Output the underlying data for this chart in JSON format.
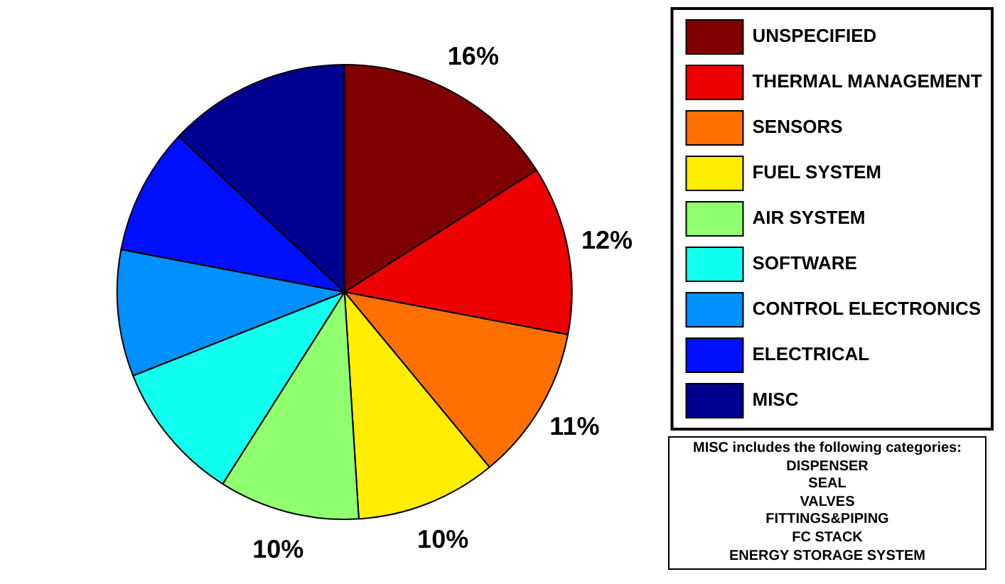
{
  "chart_data": {
    "type": "pie",
    "categories": [
      "UNSPECIFIED",
      "THERMAL MANAGEMENT",
      "SENSORS",
      "FUEL SYSTEM",
      "AIR SYSTEM",
      "SOFTWARE",
      "CONTROL ELECTRONICS",
      "ELECTRICAL",
      "MISC"
    ],
    "values": [
      16,
      12,
      11,
      10,
      10,
      10,
      9,
      9,
      13
    ],
    "colors": [
      "#800000",
      "#ee0000",
      "#ff7000",
      "#ffee00",
      "#90ff70",
      "#10ffee",
      "#0090ff",
      "#0010ff",
      "#000090"
    ],
    "value_labels": [
      "16%",
      "12%",
      "11%",
      "10%",
      "10%",
      null,
      null,
      null,
      null
    ],
    "legend": "top right",
    "annotations": [
      "MISC includes the following categories:",
      "DISPENSER",
      "SEAL",
      "VALVES",
      "FITTINGS&PIPING",
      "FC STACK",
      "ENERGY STORAGE SYSTEM"
    ]
  }
}
